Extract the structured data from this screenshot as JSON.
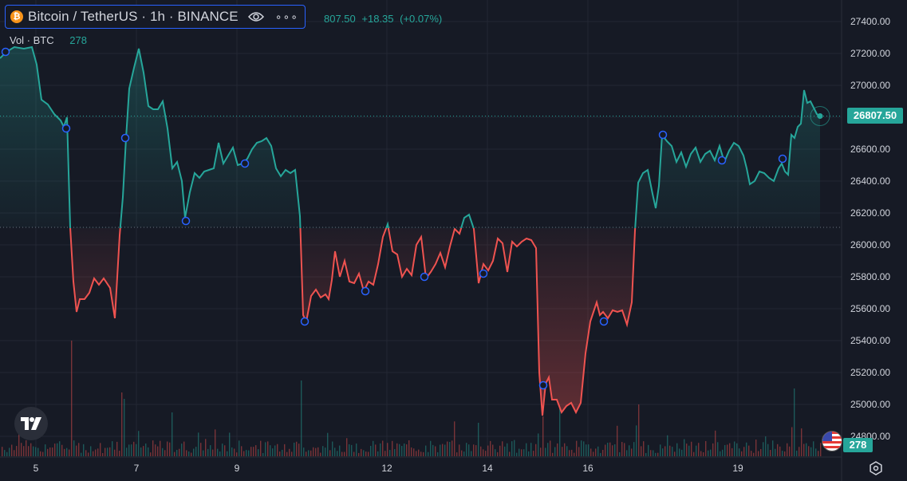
{
  "header": {
    "symbol_title": "Bitcoin / TetherUS · 1h · BINANCE",
    "coin_glyph": "₿",
    "more_glyph": "∘∘∘",
    "price_partial": "807.50",
    "change": "+18.35",
    "change_pct": "(+0.07%)"
  },
  "volume_legend": {
    "label": "Vol · BTC",
    "value": "278"
  },
  "price_tag": "26807.50",
  "volume_tag": "278",
  "icons": {
    "coin": "bitcoin-icon",
    "eye": "eye-icon",
    "more": "more-icon",
    "logo": "tradingview-logo-icon",
    "flag": "us-flag-icon",
    "settings": "settings-gear-icon"
  },
  "colors": {
    "up": "#26a69a",
    "down": "#ef5350",
    "background": "#161a25",
    "marker": "#2962ff"
  },
  "chart_data": {
    "type": "area",
    "title": "",
    "xlabel": "",
    "ylabel": "",
    "baseline": 26110,
    "last_price": 26807.5,
    "ylim": [
      24700,
      27500
    ],
    "grid": true,
    "y_ticks": [
      "27400.00",
      "27200.00",
      "27000.00",
      "26800.00",
      "26600.00",
      "26400.00",
      "26200.00",
      "26000.00",
      "25800.00",
      "25600.00",
      "25400.00",
      "25200.00",
      "25000.00",
      "24800.00"
    ],
    "x_ticks": [
      {
        "label": "5",
        "x": 45
      },
      {
        "label": "7",
        "x": 171
      },
      {
        "label": "9",
        "x": 297
      },
      {
        "label": "12",
        "x": 485
      },
      {
        "label": "14",
        "x": 611
      },
      {
        "label": "16",
        "x": 737
      },
      {
        "label": "19",
        "x": 925
      }
    ],
    "series": [
      {
        "values": [
          [
            0,
            27170
          ],
          [
            8,
            27210
          ],
          [
            18,
            27240
          ],
          [
            30,
            27230
          ],
          [
            40,
            27240
          ],
          [
            46,
            27130
          ],
          [
            52,
            26910
          ],
          [
            60,
            26880
          ],
          [
            68,
            26820
          ],
          [
            76,
            26780
          ],
          [
            80,
            26740
          ],
          [
            84,
            26800
          ],
          [
            88,
            26110
          ],
          [
            92,
            25770
          ],
          [
            96,
            25580
          ],
          [
            100,
            25660
          ],
          [
            106,
            25660
          ],
          [
            112,
            25700
          ],
          [
            118,
            25790
          ],
          [
            124,
            25750
          ],
          [
            130,
            25790
          ],
          [
            138,
            25730
          ],
          [
            144,
            25540
          ],
          [
            150,
            26060
          ],
          [
            154,
            26300
          ],
          [
            158,
            26670
          ],
          [
            162,
            26980
          ],
          [
            168,
            27110
          ],
          [
            174,
            27230
          ],
          [
            180,
            27080
          ],
          [
            186,
            26870
          ],
          [
            192,
            26850
          ],
          [
            198,
            26850
          ],
          [
            204,
            26900
          ],
          [
            210,
            26730
          ],
          [
            216,
            26480
          ],
          [
            222,
            26520
          ],
          [
            228,
            26400
          ],
          [
            232,
            26170
          ],
          [
            238,
            26330
          ],
          [
            244,
            26450
          ],
          [
            250,
            26420
          ],
          [
            256,
            26460
          ],
          [
            262,
            26470
          ],
          [
            268,
            26480
          ],
          [
            274,
            26640
          ],
          [
            280,
            26510
          ],
          [
            286,
            26560
          ],
          [
            292,
            26610
          ],
          [
            298,
            26500
          ],
          [
            304,
            26510
          ],
          [
            310,
            26540
          ],
          [
            316,
            26600
          ],
          [
            322,
            26640
          ],
          [
            328,
            26650
          ],
          [
            334,
            26670
          ],
          [
            340,
            26620
          ],
          [
            346,
            26480
          ],
          [
            352,
            26430
          ],
          [
            358,
            26470
          ],
          [
            364,
            26450
          ],
          [
            370,
            26470
          ],
          [
            376,
            26180
          ],
          [
            380,
            25560
          ],
          [
            384,
            25520
          ],
          [
            390,
            25680
          ],
          [
            396,
            25720
          ],
          [
            402,
            25670
          ],
          [
            408,
            25690
          ],
          [
            412,
            25660
          ],
          [
            416,
            25780
          ],
          [
            420,
            25960
          ],
          [
            426,
            25800
          ],
          [
            432,
            25900
          ],
          [
            438,
            25770
          ],
          [
            444,
            25760
          ],
          [
            450,
            25820
          ],
          [
            456,
            25710
          ],
          [
            462,
            25770
          ],
          [
            468,
            25750
          ],
          [
            474,
            25880
          ],
          [
            480,
            26050
          ],
          [
            486,
            26130
          ],
          [
            492,
            25960
          ],
          [
            498,
            25940
          ],
          [
            504,
            25800
          ],
          [
            510,
            25850
          ],
          [
            516,
            25810
          ],
          [
            522,
            26000
          ],
          [
            528,
            26050
          ],
          [
            534,
            25790
          ],
          [
            540,
            25830
          ],
          [
            546,
            25880
          ],
          [
            552,
            25950
          ],
          [
            558,
            25860
          ],
          [
            564,
            25990
          ],
          [
            570,
            26100
          ],
          [
            576,
            26070
          ],
          [
            582,
            26170
          ],
          [
            588,
            26190
          ],
          [
            594,
            26100
          ],
          [
            600,
            25760
          ],
          [
            606,
            25880
          ],
          [
            612,
            25840
          ],
          [
            618,
            25900
          ],
          [
            624,
            26040
          ],
          [
            630,
            26010
          ],
          [
            636,
            25830
          ],
          [
            642,
            26020
          ],
          [
            648,
            25990
          ],
          [
            654,
            26020
          ],
          [
            660,
            26040
          ],
          [
            666,
            26030
          ],
          [
            672,
            25980
          ],
          [
            676,
            25200
          ],
          [
            680,
            24930
          ],
          [
            684,
            25130
          ],
          [
            688,
            25170
          ],
          [
            692,
            25030
          ],
          [
            698,
            25030
          ],
          [
            704,
            24950
          ],
          [
            710,
            24990
          ],
          [
            716,
            25010
          ],
          [
            722,
            24950
          ],
          [
            728,
            25010
          ],
          [
            734,
            25320
          ],
          [
            740,
            25520
          ],
          [
            744,
            25580
          ],
          [
            748,
            25640
          ],
          [
            752,
            25560
          ],
          [
            756,
            25580
          ],
          [
            762,
            25540
          ],
          [
            768,
            25590
          ],
          [
            774,
            25580
          ],
          [
            780,
            25590
          ],
          [
            786,
            25500
          ],
          [
            792,
            25640
          ],
          [
            796,
            26090
          ],
          [
            800,
            26390
          ],
          [
            806,
            26450
          ],
          [
            812,
            26470
          ],
          [
            818,
            26320
          ],
          [
            822,
            26230
          ],
          [
            826,
            26370
          ],
          [
            830,
            26690
          ],
          [
            836,
            26650
          ],
          [
            842,
            26620
          ],
          [
            848,
            26520
          ],
          [
            854,
            26580
          ],
          [
            860,
            26490
          ],
          [
            866,
            26570
          ],
          [
            872,
            26610
          ],
          [
            878,
            26520
          ],
          [
            884,
            26570
          ],
          [
            890,
            26590
          ],
          [
            896,
            26530
          ],
          [
            902,
            26620
          ],
          [
            908,
            26520
          ],
          [
            914,
            26590
          ],
          [
            920,
            26640
          ],
          [
            926,
            26620
          ],
          [
            932,
            26560
          ],
          [
            936,
            26480
          ],
          [
            940,
            26380
          ],
          [
            946,
            26400
          ],
          [
            952,
            26460
          ],
          [
            958,
            26450
          ],
          [
            964,
            26420
          ],
          [
            970,
            26400
          ],
          [
            976,
            26480
          ],
          [
            980,
            26510
          ],
          [
            984,
            26460
          ],
          [
            988,
            26440
          ],
          [
            992,
            26690
          ],
          [
            996,
            26670
          ],
          [
            1000,
            26740
          ],
          [
            1004,
            26760
          ],
          [
            1008,
            26970
          ],
          [
            1012,
            26890
          ],
          [
            1016,
            26900
          ],
          [
            1020,
            26860
          ],
          [
            1024,
            26820
          ],
          [
            1028,
            26807.5
          ]
        ]
      }
    ],
    "markers": [
      {
        "x": 7,
        "y": 27210
      },
      {
        "x": 83,
        "y": 26730
      },
      {
        "x": 157,
        "y": 26670
      },
      {
        "x": 233,
        "y": 26150
      },
      {
        "x": 307,
        "y": 26510
      },
      {
        "x": 382,
        "y": 25520
      },
      {
        "x": 458,
        "y": 25710
      },
      {
        "x": 532,
        "y": 25800
      },
      {
        "x": 606,
        "y": 25820
      },
      {
        "x": 681,
        "y": 25120
      },
      {
        "x": 757,
        "y": 25520
      },
      {
        "x": 831,
        "y": 26690
      },
      {
        "x": 905,
        "y": 26530
      },
      {
        "x": 981,
        "y": 26540
      }
    ]
  }
}
